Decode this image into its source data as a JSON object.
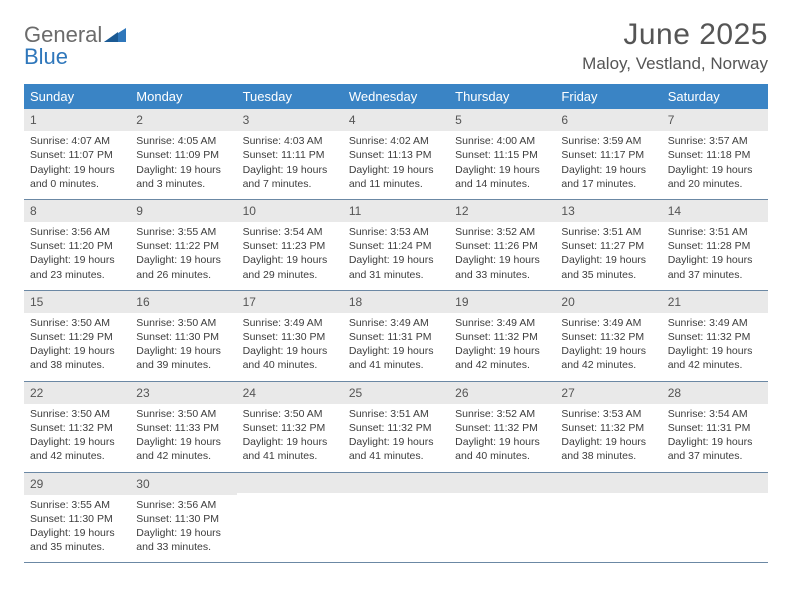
{
  "brand": {
    "word1": "General",
    "word2": "Blue"
  },
  "title": "June 2025",
  "location": "Maloy, Vestland, Norway",
  "colors": {
    "header_bg": "#3a84c5",
    "header_text": "#ffffff",
    "daynum_bg": "#e9e9e9",
    "week_border": "#6b88a4",
    "body_text": "#3d3d3d",
    "title_text": "#555555",
    "brand_gray": "#6b6b6b",
    "brand_blue": "#2f77bb"
  },
  "weekdays": [
    "Sunday",
    "Monday",
    "Tuesday",
    "Wednesday",
    "Thursday",
    "Friday",
    "Saturday"
  ],
  "weeks": [
    [
      {
        "n": "1",
        "sunrise": "Sunrise: 4:07 AM",
        "sunset": "Sunset: 11:07 PM",
        "daylight": "Daylight: 19 hours and 0 minutes."
      },
      {
        "n": "2",
        "sunrise": "Sunrise: 4:05 AM",
        "sunset": "Sunset: 11:09 PM",
        "daylight": "Daylight: 19 hours and 3 minutes."
      },
      {
        "n": "3",
        "sunrise": "Sunrise: 4:03 AM",
        "sunset": "Sunset: 11:11 PM",
        "daylight": "Daylight: 19 hours and 7 minutes."
      },
      {
        "n": "4",
        "sunrise": "Sunrise: 4:02 AM",
        "sunset": "Sunset: 11:13 PM",
        "daylight": "Daylight: 19 hours and 11 minutes."
      },
      {
        "n": "5",
        "sunrise": "Sunrise: 4:00 AM",
        "sunset": "Sunset: 11:15 PM",
        "daylight": "Daylight: 19 hours and 14 minutes."
      },
      {
        "n": "6",
        "sunrise": "Sunrise: 3:59 AM",
        "sunset": "Sunset: 11:17 PM",
        "daylight": "Daylight: 19 hours and 17 minutes."
      },
      {
        "n": "7",
        "sunrise": "Sunrise: 3:57 AM",
        "sunset": "Sunset: 11:18 PM",
        "daylight": "Daylight: 19 hours and 20 minutes."
      }
    ],
    [
      {
        "n": "8",
        "sunrise": "Sunrise: 3:56 AM",
        "sunset": "Sunset: 11:20 PM",
        "daylight": "Daylight: 19 hours and 23 minutes."
      },
      {
        "n": "9",
        "sunrise": "Sunrise: 3:55 AM",
        "sunset": "Sunset: 11:22 PM",
        "daylight": "Daylight: 19 hours and 26 minutes."
      },
      {
        "n": "10",
        "sunrise": "Sunrise: 3:54 AM",
        "sunset": "Sunset: 11:23 PM",
        "daylight": "Daylight: 19 hours and 29 minutes."
      },
      {
        "n": "11",
        "sunrise": "Sunrise: 3:53 AM",
        "sunset": "Sunset: 11:24 PM",
        "daylight": "Daylight: 19 hours and 31 minutes."
      },
      {
        "n": "12",
        "sunrise": "Sunrise: 3:52 AM",
        "sunset": "Sunset: 11:26 PM",
        "daylight": "Daylight: 19 hours and 33 minutes."
      },
      {
        "n": "13",
        "sunrise": "Sunrise: 3:51 AM",
        "sunset": "Sunset: 11:27 PM",
        "daylight": "Daylight: 19 hours and 35 minutes."
      },
      {
        "n": "14",
        "sunrise": "Sunrise: 3:51 AM",
        "sunset": "Sunset: 11:28 PM",
        "daylight": "Daylight: 19 hours and 37 minutes."
      }
    ],
    [
      {
        "n": "15",
        "sunrise": "Sunrise: 3:50 AM",
        "sunset": "Sunset: 11:29 PM",
        "daylight": "Daylight: 19 hours and 38 minutes."
      },
      {
        "n": "16",
        "sunrise": "Sunrise: 3:50 AM",
        "sunset": "Sunset: 11:30 PM",
        "daylight": "Daylight: 19 hours and 39 minutes."
      },
      {
        "n": "17",
        "sunrise": "Sunrise: 3:49 AM",
        "sunset": "Sunset: 11:30 PM",
        "daylight": "Daylight: 19 hours and 40 minutes."
      },
      {
        "n": "18",
        "sunrise": "Sunrise: 3:49 AM",
        "sunset": "Sunset: 11:31 PM",
        "daylight": "Daylight: 19 hours and 41 minutes."
      },
      {
        "n": "19",
        "sunrise": "Sunrise: 3:49 AM",
        "sunset": "Sunset: 11:32 PM",
        "daylight": "Daylight: 19 hours and 42 minutes."
      },
      {
        "n": "20",
        "sunrise": "Sunrise: 3:49 AM",
        "sunset": "Sunset: 11:32 PM",
        "daylight": "Daylight: 19 hours and 42 minutes."
      },
      {
        "n": "21",
        "sunrise": "Sunrise: 3:49 AM",
        "sunset": "Sunset: 11:32 PM",
        "daylight": "Daylight: 19 hours and 42 minutes."
      }
    ],
    [
      {
        "n": "22",
        "sunrise": "Sunrise: 3:50 AM",
        "sunset": "Sunset: 11:32 PM",
        "daylight": "Daylight: 19 hours and 42 minutes."
      },
      {
        "n": "23",
        "sunrise": "Sunrise: 3:50 AM",
        "sunset": "Sunset: 11:33 PM",
        "daylight": "Daylight: 19 hours and 42 minutes."
      },
      {
        "n": "24",
        "sunrise": "Sunrise: 3:50 AM",
        "sunset": "Sunset: 11:32 PM",
        "daylight": "Daylight: 19 hours and 41 minutes."
      },
      {
        "n": "25",
        "sunrise": "Sunrise: 3:51 AM",
        "sunset": "Sunset: 11:32 PM",
        "daylight": "Daylight: 19 hours and 41 minutes."
      },
      {
        "n": "26",
        "sunrise": "Sunrise: 3:52 AM",
        "sunset": "Sunset: 11:32 PM",
        "daylight": "Daylight: 19 hours and 40 minutes."
      },
      {
        "n": "27",
        "sunrise": "Sunrise: 3:53 AM",
        "sunset": "Sunset: 11:32 PM",
        "daylight": "Daylight: 19 hours and 38 minutes."
      },
      {
        "n": "28",
        "sunrise": "Sunrise: 3:54 AM",
        "sunset": "Sunset: 11:31 PM",
        "daylight": "Daylight: 19 hours and 37 minutes."
      }
    ],
    [
      {
        "n": "29",
        "sunrise": "Sunrise: 3:55 AM",
        "sunset": "Sunset: 11:30 PM",
        "daylight": "Daylight: 19 hours and 35 minutes."
      },
      {
        "n": "30",
        "sunrise": "Sunrise: 3:56 AM",
        "sunset": "Sunset: 11:30 PM",
        "daylight": "Daylight: 19 hours and 33 minutes."
      },
      {
        "empty": true
      },
      {
        "empty": true
      },
      {
        "empty": true
      },
      {
        "empty": true
      },
      {
        "empty": true
      }
    ]
  ]
}
